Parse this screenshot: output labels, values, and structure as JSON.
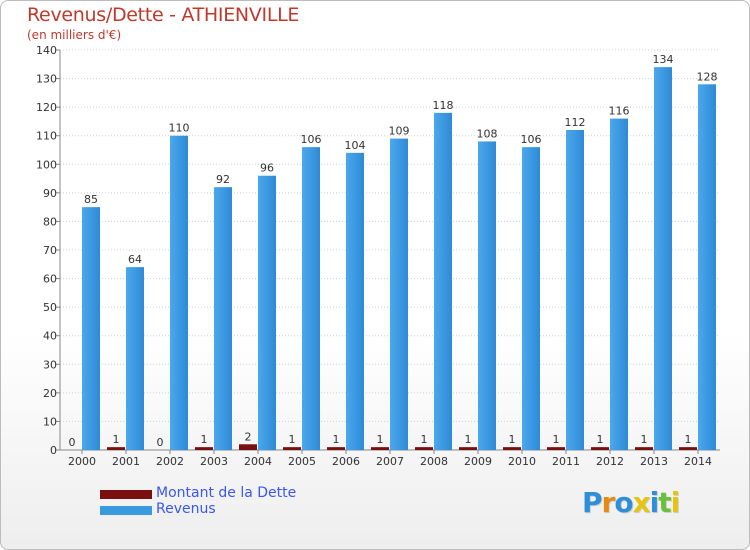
{
  "header": {
    "title": "Revenus/Dette - ATHIENVILLE",
    "subtitle": "(en milliers d'€)"
  },
  "logo": {
    "text": "Proxiti",
    "colors": [
      "#2e8fd8",
      "#e58a12",
      "#2e8fd8",
      "#e5c412",
      "#2e8fd8",
      "#6cbf3a",
      "#e5c412"
    ]
  },
  "colors": {
    "revenus": "#3a9ae0",
    "dette": "#7a0f0f",
    "grid": "#d0d0d0",
    "title": "#c0392b"
  },
  "chart_data": {
    "type": "bar",
    "title": "Revenus/Dette - ATHIENVILLE",
    "ylabel": "(en milliers d'€)",
    "xlabel": "",
    "ylim": [
      0,
      140
    ],
    "yticks": [
      0,
      10,
      20,
      30,
      40,
      50,
      60,
      70,
      80,
      90,
      100,
      110,
      120,
      130,
      140
    ],
    "grid": true,
    "legend": "bottom-left",
    "categories": [
      "2000",
      "2001",
      "2002",
      "2003",
      "2004",
      "2005",
      "2006",
      "2007",
      "2008",
      "2009",
      "2010",
      "2011",
      "2012",
      "2013",
      "2014"
    ],
    "series": [
      {
        "name": "Montant de la Dette",
        "values": [
          0,
          1,
          0,
          1,
          2,
          1,
          1,
          1,
          1,
          1,
          1,
          1,
          1,
          1,
          1
        ]
      },
      {
        "name": "Revenus",
        "values": [
          85,
          64,
          110,
          92,
          96,
          106,
          104,
          109,
          118,
          108,
          106,
          112,
          116,
          134,
          128
        ]
      }
    ]
  }
}
